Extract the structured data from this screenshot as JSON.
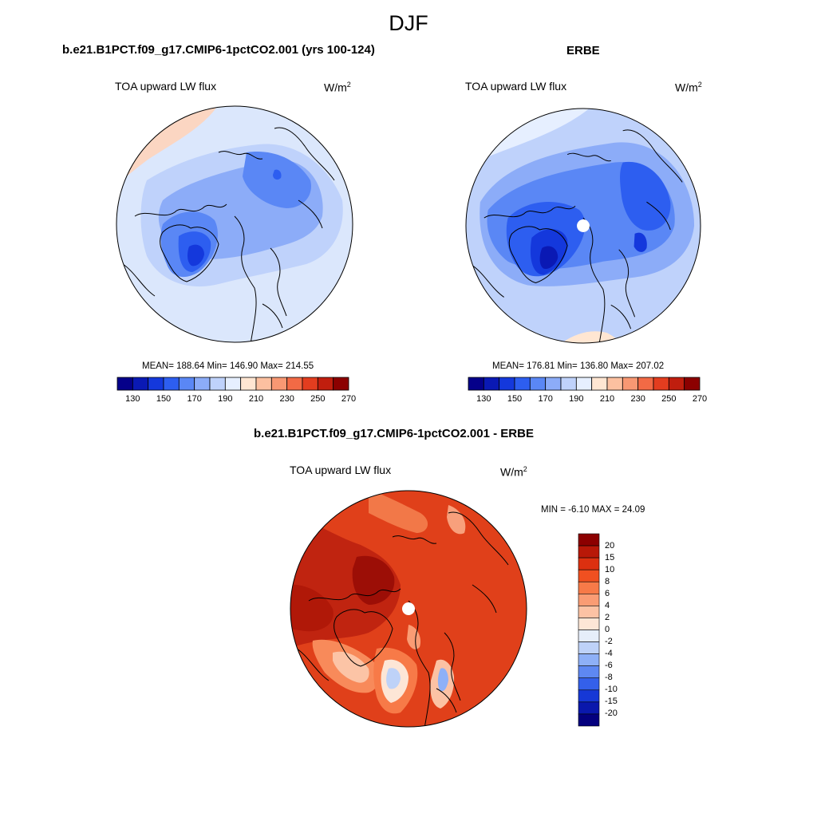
{
  "figure": {
    "title": "DJF",
    "projection": "north-polar-stereographic",
    "coastlines": true
  },
  "panels": [
    {
      "id": "model",
      "case_title": "b.e21.B1PCT.f09_g17.CMIP6-1pctCO2.001 (yrs 100-124)",
      "variable": "TOA upward LW flux",
      "units_base": "W/m",
      "units_exp": "2",
      "stats_text": "MEAN= 188.64  Min= 146.90  Max= 214.55",
      "mean": 188.64,
      "min": 146.9,
      "max": 214.55
    },
    {
      "id": "obs",
      "case_title": "ERBE",
      "variable": "TOA upward LW flux",
      "units_base": "W/m",
      "units_exp": "2",
      "stats_text": "MEAN= 176.81  Min= 136.80  Max= 207.02",
      "mean": 176.81,
      "min": 136.8,
      "max": 207.02
    },
    {
      "id": "diff",
      "case_title": "b.e21.B1PCT.f09_g17.CMIP6-1pctCO2.001 - ERBE",
      "variable": "TOA upward LW flux",
      "units_base": "W/m",
      "units_exp": "2",
      "stats_text": "MIN =  -6.10 MAX =  24.09",
      "min": -6.1,
      "max": 24.09
    }
  ],
  "abs_colorbar": {
    "colors": [
      "#05008a",
      "#0a19b4",
      "#1438dc",
      "#2d5ef0",
      "#5a87f5",
      "#8cacf8",
      "#bfd2fb",
      "#e6efff",
      "#ffe6d2",
      "#fcc0a0",
      "#f89873",
      "#f26a45",
      "#e33d1f",
      "#c01e0e",
      "#8c0000"
    ],
    "tick_labels": [
      "130",
      "150",
      "170",
      "190",
      "210",
      "230",
      "250",
      "270"
    ]
  },
  "diff_colorbar": {
    "colors_top_to_bottom": [
      "#8c0000",
      "#b81808",
      "#dc3010",
      "#f05020",
      "#f77a48",
      "#fa9c74",
      "#fcc2a4",
      "#fde6d6",
      "#e6eefa",
      "#bed2f8",
      "#8eb0f7",
      "#5e88f2",
      "#3460ea",
      "#1638d6",
      "#0a18ac",
      "#04007e"
    ],
    "tick_labels": [
      "20",
      "15",
      "10",
      "8",
      "6",
      "4",
      "2",
      "0",
      "-2",
      "-4",
      "-6",
      "-8",
      "-10",
      "-15",
      "-20"
    ]
  },
  "chart_data": {
    "type": "heatmap",
    "title": "DJF",
    "note": "Three polar-stereographic contour maps of TOA upward LW flux (W/m2).",
    "maps": [
      {
        "name": "b.e21.B1PCT.f09_g17.CMIP6-1pctCO2.001 (yrs 100-124)",
        "mean": 188.64,
        "min": 146.9,
        "max": 214.55,
        "levels": [
          130,
          140,
          150,
          160,
          170,
          180,
          190,
          200,
          210,
          220,
          230,
          240,
          250,
          260,
          270
        ]
      },
      {
        "name": "ERBE",
        "mean": 176.81,
        "min": 136.8,
        "max": 207.02,
        "levels": [
          130,
          140,
          150,
          160,
          170,
          180,
          190,
          200,
          210,
          220,
          230,
          240,
          250,
          260,
          270
        ]
      },
      {
        "name": "b.e21.B1PCT.f09_g17.CMIP6-1pctCO2.001 - ERBE",
        "min": -6.1,
        "max": 24.09,
        "levels": [
          -20,
          -15,
          -10,
          -8,
          -6,
          -4,
          -2,
          0,
          2,
          4,
          6,
          8,
          10,
          15,
          20
        ]
      }
    ]
  }
}
